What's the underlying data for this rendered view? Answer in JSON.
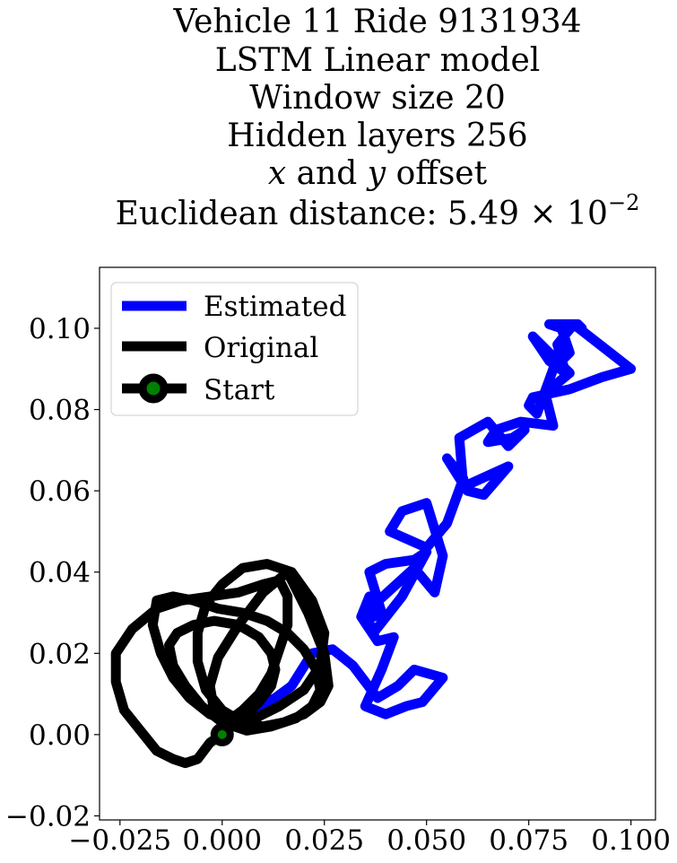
{
  "chart_data": {
    "type": "line",
    "title_lines": [
      "Vehicle 11 Ride 9131934",
      "LSTM Linear model",
      "Window size 20",
      "Hidden layers 256",
      "x and y offset",
      "Euclidean distance: 5.49 × 10⁻²"
    ],
    "title_offset_prefix": "x",
    "title_offset_mid": " and ",
    "title_offset_var": "y",
    "title_offset_suffix": " offset",
    "title_dist_prefix": "Euclidean distance: 5.49",
    "title_dist_times": " × 10",
    "title_dist_exp": "−2",
    "xlabel": "",
    "ylabel": "",
    "xlim": [
      -0.03,
      0.106
    ],
    "ylim": [
      -0.021,
      0.115
    ],
    "xticks": [
      -0.025,
      0.0,
      0.025,
      0.05,
      0.075,
      0.1
    ],
    "xtick_labels": [
      "−0.025",
      "0.000",
      "0.025",
      "0.050",
      "0.075",
      "0.100"
    ],
    "yticks": [
      -0.02,
      0.0,
      0.02,
      0.04,
      0.06,
      0.08,
      0.1
    ],
    "ytick_labels": [
      "−0.02",
      "0.00",
      "0.02",
      "0.04",
      "0.06",
      "0.08",
      "0.10"
    ],
    "grid": false,
    "legend_position": "top-left",
    "series": [
      {
        "name": "Estimated",
        "color": "#0000ff",
        "x": [
          0.0,
          0.004,
          0.009,
          0.013,
          0.017,
          0.022,
          0.027,
          0.032,
          0.038,
          0.043,
          0.047,
          0.054,
          0.049,
          0.045,
          0.04,
          0.035,
          0.039,
          0.042,
          0.038,
          0.034,
          0.036,
          0.037,
          0.039,
          0.036,
          0.04,
          0.047,
          0.05,
          0.044,
          0.037,
          0.035,
          0.047,
          0.052,
          0.054,
          0.05,
          0.044,
          0.041,
          0.05,
          0.055,
          0.059,
          0.055,
          0.06,
          0.064,
          0.07,
          0.059,
          0.058,
          0.065,
          0.07,
          0.074,
          0.071,
          0.065,
          0.067,
          0.073,
          0.081,
          0.079,
          0.085,
          0.079,
          0.076,
          0.08,
          0.084,
          0.082,
          0.086,
          0.1,
          0.093,
          0.085,
          0.076,
          0.075,
          0.077,
          0.081,
          0.085,
          0.083,
          0.08,
          0.087,
          0.088
        ],
        "y": [
          0.0,
          0.004,
          0.007,
          0.009,
          0.012,
          0.02,
          0.021,
          0.017,
          0.009,
          0.012,
          0.016,
          0.014,
          0.008,
          0.007,
          0.005,
          0.007,
          0.016,
          0.024,
          0.023,
          0.029,
          0.034,
          0.029,
          0.03,
          0.04,
          0.042,
          0.043,
          0.045,
          0.034,
          0.025,
          0.03,
          0.041,
          0.035,
          0.044,
          0.057,
          0.055,
          0.05,
          0.046,
          0.052,
          0.063,
          0.068,
          0.06,
          0.059,
          0.066,
          0.061,
          0.073,
          0.077,
          0.071,
          0.075,
          0.073,
          0.072,
          0.075,
          0.077,
          0.076,
          0.084,
          0.089,
          0.095,
          0.098,
          0.092,
          0.089,
          0.096,
          0.101,
          0.09,
          0.088,
          0.085,
          0.083,
          0.081,
          0.079,
          0.09,
          0.094,
          0.1,
          0.101,
          0.101,
          0.1
        ]
      },
      {
        "name": "Original",
        "color": "#000000",
        "x": [
          0.0,
          -0.003,
          -0.006,
          -0.009,
          -0.012,
          -0.016,
          -0.02,
          -0.024,
          -0.026,
          -0.026,
          -0.022,
          -0.016,
          -0.01,
          -0.003,
          0.004,
          0.01,
          0.014,
          0.016,
          0.016,
          0.014,
          0.012,
          0.009,
          0.005,
          0.001,
          -0.002,
          -0.003,
          -0.001,
          0.004,
          0.01,
          0.016,
          0.021,
          0.025,
          0.026,
          0.024,
          0.02,
          0.015,
          0.01,
          0.005,
          0.0,
          -0.004,
          -0.006,
          -0.006,
          -0.004,
          0.0,
          0.005,
          0.011,
          0.017,
          0.022,
          0.025,
          0.024,
          0.02,
          0.014,
          0.008,
          0.002,
          -0.003,
          -0.008,
          -0.012,
          -0.015,
          -0.017,
          -0.016,
          -0.012,
          -0.007,
          -0.001,
          0.005,
          0.011,
          0.016,
          0.02,
          0.023,
          0.024,
          0.022,
          0.018,
          0.012,
          0.006,
          0.0,
          -0.005,
          -0.009,
          -0.012,
          -0.013,
          -0.011,
          -0.007,
          -0.002,
          0.004,
          0.009,
          0.012,
          0.013,
          0.012,
          0.009,
          0.005,
          0.0
        ],
        "y": [
          0.0,
          -0.002,
          -0.006,
          -0.007,
          -0.006,
          -0.004,
          0.001,
          0.006,
          0.013,
          0.02,
          0.026,
          0.031,
          0.033,
          0.034,
          0.035,
          0.037,
          0.038,
          0.034,
          0.027,
          0.021,
          0.015,
          0.01,
          0.006,
          0.003,
          0.006,
          0.012,
          0.019,
          0.027,
          0.035,
          0.04,
          0.03,
          0.02,
          0.012,
          0.008,
          0.005,
          0.003,
          0.002,
          0.003,
          0.006,
          0.011,
          0.018,
          0.025,
          0.032,
          0.037,
          0.041,
          0.042,
          0.04,
          0.033,
          0.025,
          0.017,
          0.011,
          0.007,
          0.004,
          0.003,
          0.005,
          0.009,
          0.014,
          0.02,
          0.027,
          0.033,
          0.034,
          0.033,
          0.031,
          0.03,
          0.028,
          0.025,
          0.021,
          0.016,
          0.011,
          0.007,
          0.004,
          0.002,
          0.001,
          0.003,
          0.007,
          0.012,
          0.017,
          0.022,
          0.025,
          0.027,
          0.028,
          0.027,
          0.024,
          0.02,
          0.016,
          0.012,
          0.008,
          0.004,
          0.001
        ]
      }
    ],
    "start_point": {
      "name": "Start",
      "x": 0.0,
      "y": 0.0,
      "edge_color": "#000000",
      "face_color": "#008000"
    }
  }
}
